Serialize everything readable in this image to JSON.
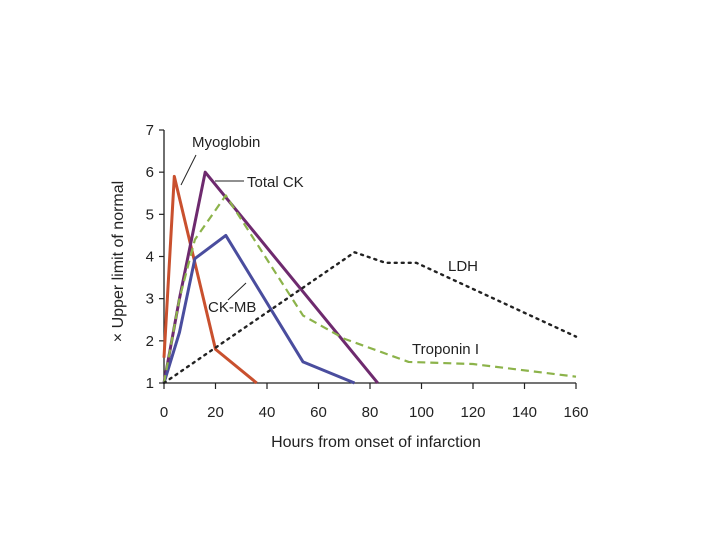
{
  "chart_data": {
    "type": "line",
    "title": "",
    "xlabel": "Hours from onset of infarction",
    "ylabel": "× Upper limit of normal",
    "xlim": [
      0,
      160
    ],
    "ylim": [
      1,
      7
    ],
    "xticks": [
      0,
      20,
      40,
      60,
      80,
      100,
      120,
      140,
      160
    ],
    "yticks": [
      1,
      2,
      3,
      4,
      5,
      6,
      7
    ],
    "series": [
      {
        "name": "Myoglobin",
        "color": "#c9502e",
        "style": "solid",
        "points": [
          [
            0,
            1.6
          ],
          [
            4,
            5.9
          ],
          [
            20,
            1.8
          ],
          [
            36,
            1.0
          ]
        ]
      },
      {
        "name": "Total CK",
        "color": "#6e2a6e",
        "style": "solid",
        "points": [
          [
            0,
            1.0
          ],
          [
            6,
            3.0
          ],
          [
            16,
            6.0
          ],
          [
            83,
            1.0
          ]
        ]
      },
      {
        "name": "CK-MB",
        "color": "#4a4d9e",
        "style": "solid",
        "points": [
          [
            0,
            1.0
          ],
          [
            6,
            2.2
          ],
          [
            12,
            3.95
          ],
          [
            24,
            4.5
          ],
          [
            54,
            1.5
          ],
          [
            74,
            1.0
          ]
        ]
      },
      {
        "name": "Troponin I",
        "color": "#8cb34a",
        "style": "dashed",
        "points": [
          [
            0,
            1.0
          ],
          [
            6,
            3.0
          ],
          [
            12,
            4.4
          ],
          [
            24,
            5.45
          ],
          [
            54,
            2.6
          ],
          [
            70,
            2.05
          ],
          [
            95,
            1.5
          ],
          [
            120,
            1.45
          ],
          [
            160,
            1.15
          ]
        ]
      },
      {
        "name": "LDH",
        "color": "#222222",
        "style": "dotted",
        "points": [
          [
            0,
            1.0
          ],
          [
            74,
            4.1
          ],
          [
            86,
            3.85
          ],
          [
            98,
            3.85
          ],
          [
            160,
            2.1
          ]
        ]
      }
    ],
    "annotations": [
      {
        "text": "Myoglobin",
        "series": "Myoglobin"
      },
      {
        "text": "Total CK",
        "series": "Total CK"
      },
      {
        "text": "CK-MB",
        "series": "CK-MB"
      },
      {
        "text": "LDH",
        "series": "LDH"
      },
      {
        "text": "Troponin I",
        "series": "Troponin I"
      }
    ]
  }
}
